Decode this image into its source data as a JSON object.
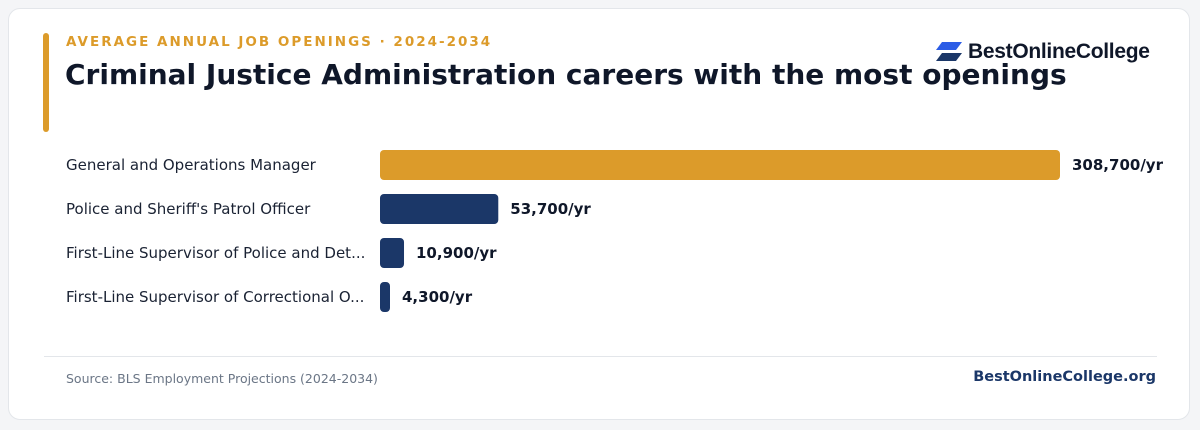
{
  "header": {
    "eyebrow": "AVERAGE ANNUAL JOB OPENINGS · 2024-2034",
    "title": "Criminal Justice Administration careers with the most openings"
  },
  "brand": {
    "logo_text": "BestOnlineCollege",
    "logo_icon": "book-stack-icon",
    "site": "BestOnlineCollege.org"
  },
  "footer": {
    "source": "Source: BLS Employment Projections (2024-2034)"
  },
  "colors": {
    "accent": "#dc9b2a",
    "navy": "#1b3768",
    "text": "#0f1729"
  },
  "chart_data": {
    "type": "bar",
    "orientation": "horizontal",
    "categories": [
      "General and Operations Manager",
      "Police and Sheriff's Patrol Officer",
      "First-Line Supervisor of Police and Det...",
      "First-Line Supervisor of Correctional O..."
    ],
    "values": [
      308700,
      53700,
      10900,
      4300
    ],
    "value_labels": [
      "308,700/yr",
      "53,700/yr",
      "10,900/yr",
      "4,300/yr"
    ],
    "highlight_index": 0,
    "xlim": [
      0,
      308700
    ],
    "grid": false,
    "legend": "none"
  }
}
